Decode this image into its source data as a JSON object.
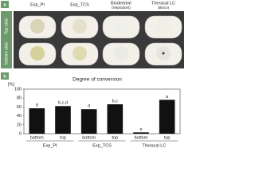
{
  "panel_a": {
    "label": "a",
    "columns": [
      "Exp_PI",
      "Exp_TCS",
      "Biodentine",
      "Theracal LC"
    ],
    "column_notes": [
      "(Septodont)",
      "(Bisco)"
    ],
    "rows": [
      "Top side",
      "bottom side"
    ]
  },
  "chart_data": {
    "type": "bar",
    "panel_label": "b",
    "title": "Degree of conversion",
    "y_label": "[%]",
    "categories": [
      "bottom",
      "top",
      "bottom",
      "top",
      "bottom",
      "top"
    ],
    "groups": [
      "Exp_PI",
      "Exp_TCS",
      "Theracal LC"
    ],
    "values": [
      57,
      62,
      55,
      66,
      3,
      76
    ],
    "letters": [
      "d",
      "b,c,d",
      "d",
      "b,c",
      "e",
      "a"
    ],
    "color": "#111111",
    "ylim": [
      0,
      100
    ],
    "yticks": [
      0,
      20,
      40,
      60,
      80,
      100
    ]
  }
}
